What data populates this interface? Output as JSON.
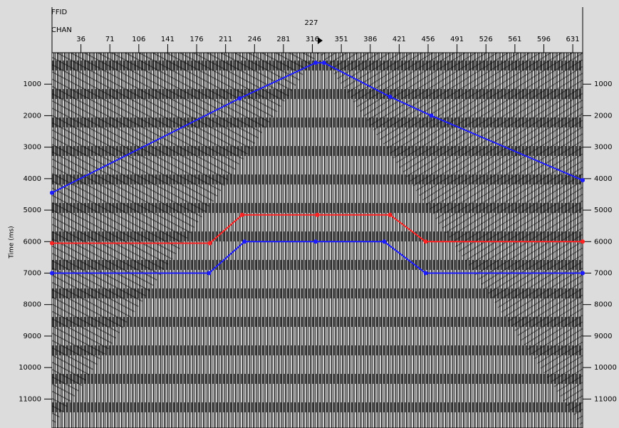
{
  "chart_data": {
    "type": "line",
    "header_label": "FFID",
    "header_value": "227",
    "x_label": "CHAN",
    "y_label": "Time (ms)",
    "xlim": [
      1,
      643
    ],
    "xticks": [
      36,
      71,
      106,
      141,
      176,
      211,
      246,
      281,
      316,
      351,
      386,
      421,
      456,
      491,
      526,
      561,
      596,
      631
    ],
    "ylim": [
      0,
      11920
    ],
    "yticks": [
      1000,
      2000,
      3000,
      4000,
      5000,
      6000,
      7000,
      8000,
      9000,
      10000,
      11000
    ],
    "y_reversed": true,
    "series": [
      {
        "color": "#1c1cff",
        "x": [
          1,
          228,
          320,
          330,
          410,
          460,
          643
        ],
        "values": [
          4450,
          1450,
          320,
          320,
          1400,
          2000,
          4050
        ]
      },
      {
        "color": "#ff2222",
        "x": [
          1,
          192,
          231,
          322,
          410,
          453,
          643
        ],
        "values": [
          6050,
          6050,
          5150,
          5150,
          5150,
          6000,
          6000
        ]
      },
      {
        "color": "#1c1cff",
        "x": [
          1,
          191,
          234,
          320,
          403,
          453,
          643
        ],
        "values": [
          7000,
          7000,
          6000,
          6000,
          6000,
          7000,
          7000
        ]
      }
    ]
  }
}
